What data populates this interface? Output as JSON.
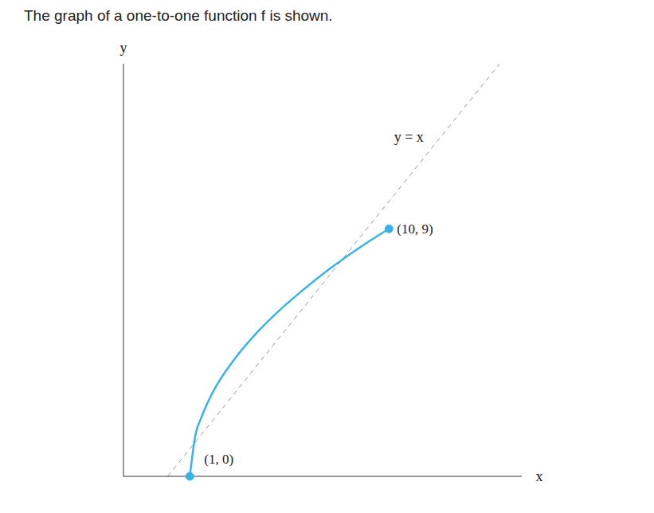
{
  "chart_data": {
    "type": "line",
    "title": "The graph of a one-to-one function f is shown.",
    "x_label": "x",
    "y_label": "y",
    "xlim": [
      -2,
      16
    ],
    "ylim": [
      0,
      15
    ],
    "grid": false,
    "tick_labels": false,
    "series": [
      {
        "color": "#36b4e8",
        "line_style": "solid",
        "x": [
          1,
          1.25,
          1.5,
          2,
          3,
          4,
          5,
          6,
          7,
          8,
          9,
          10
        ],
        "values": [
          0,
          1.5,
          2.1,
          3,
          4.24,
          5.2,
          6,
          6.7,
          7.35,
          7.94,
          8.49,
          9
        ]
      },
      {
        "name": "y = x",
        "color": "#999999",
        "line_style": "dashed",
        "x": [
          0,
          15
        ],
        "values": [
          0,
          15
        ]
      }
    ],
    "annotations": [
      {
        "text": "(1, 0)",
        "x": 1,
        "y": 0
      },
      {
        "text": "(10, 9)",
        "x": 10,
        "y": 9
      }
    ]
  }
}
